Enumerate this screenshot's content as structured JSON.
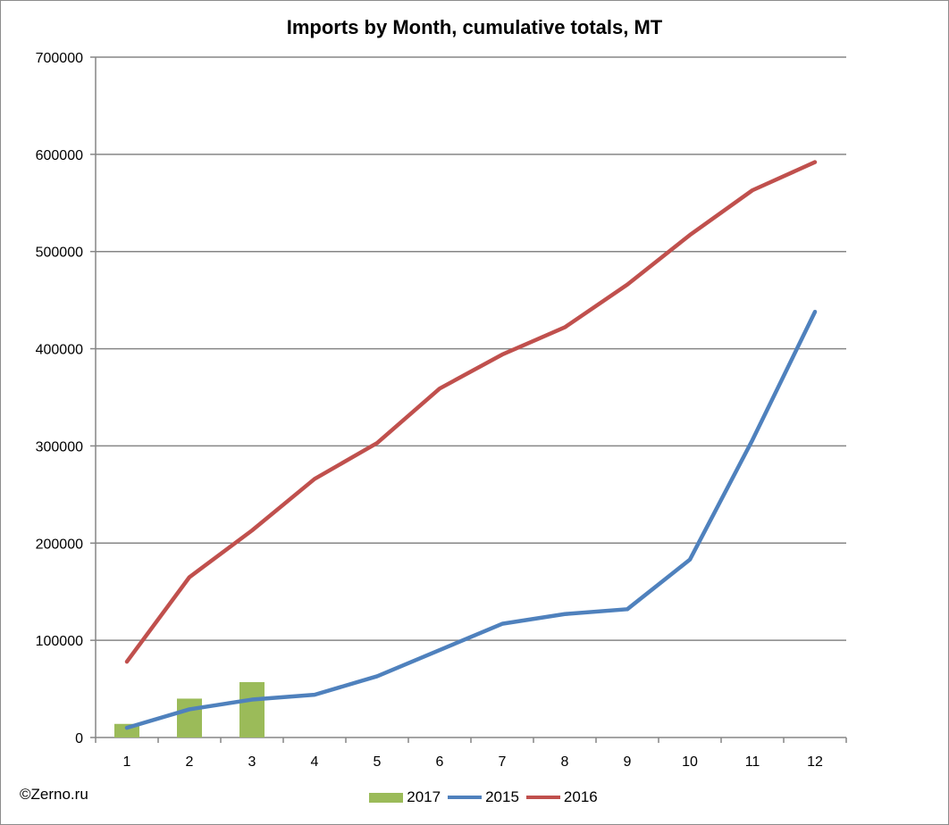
{
  "chart_data": {
    "type": "bar+line",
    "title": "Imports by Month, cumulative totals, MT",
    "xlabel": "",
    "ylabel": "",
    "categories": [
      "1",
      "2",
      "3",
      "4",
      "5",
      "6",
      "7",
      "8",
      "9",
      "10",
      "11",
      "12"
    ],
    "ylim": [
      0,
      700000
    ],
    "yticks": [
      "0",
      "100000",
      "200000",
      "300000",
      "400000",
      "500000",
      "600000",
      "700000"
    ],
    "ytick_values": [
      0,
      100000,
      200000,
      300000,
      400000,
      500000,
      600000,
      700000
    ],
    "grid": true,
    "legend_position": "bottom",
    "series": [
      {
        "name": "2017",
        "kind": "bar",
        "color": "#9bbb59",
        "values": [
          14000,
          40000,
          57000,
          null,
          null,
          null,
          null,
          null,
          null,
          null,
          null,
          null
        ]
      },
      {
        "name": "2015",
        "kind": "line",
        "color": "#4f81bd",
        "values": [
          10000,
          29000,
          39000,
          44000,
          63000,
          90000,
          117000,
          127000,
          132000,
          183000,
          306000,
          438000
        ]
      },
      {
        "name": "2016",
        "kind": "line",
        "color": "#c0504d",
        "values": [
          78000,
          165000,
          213000,
          266000,
          303000,
          359000,
          394000,
          422000,
          466000,
          517000,
          563000,
          592000
        ]
      }
    ]
  },
  "footer": {
    "copyright": "©Zerno.ru"
  }
}
